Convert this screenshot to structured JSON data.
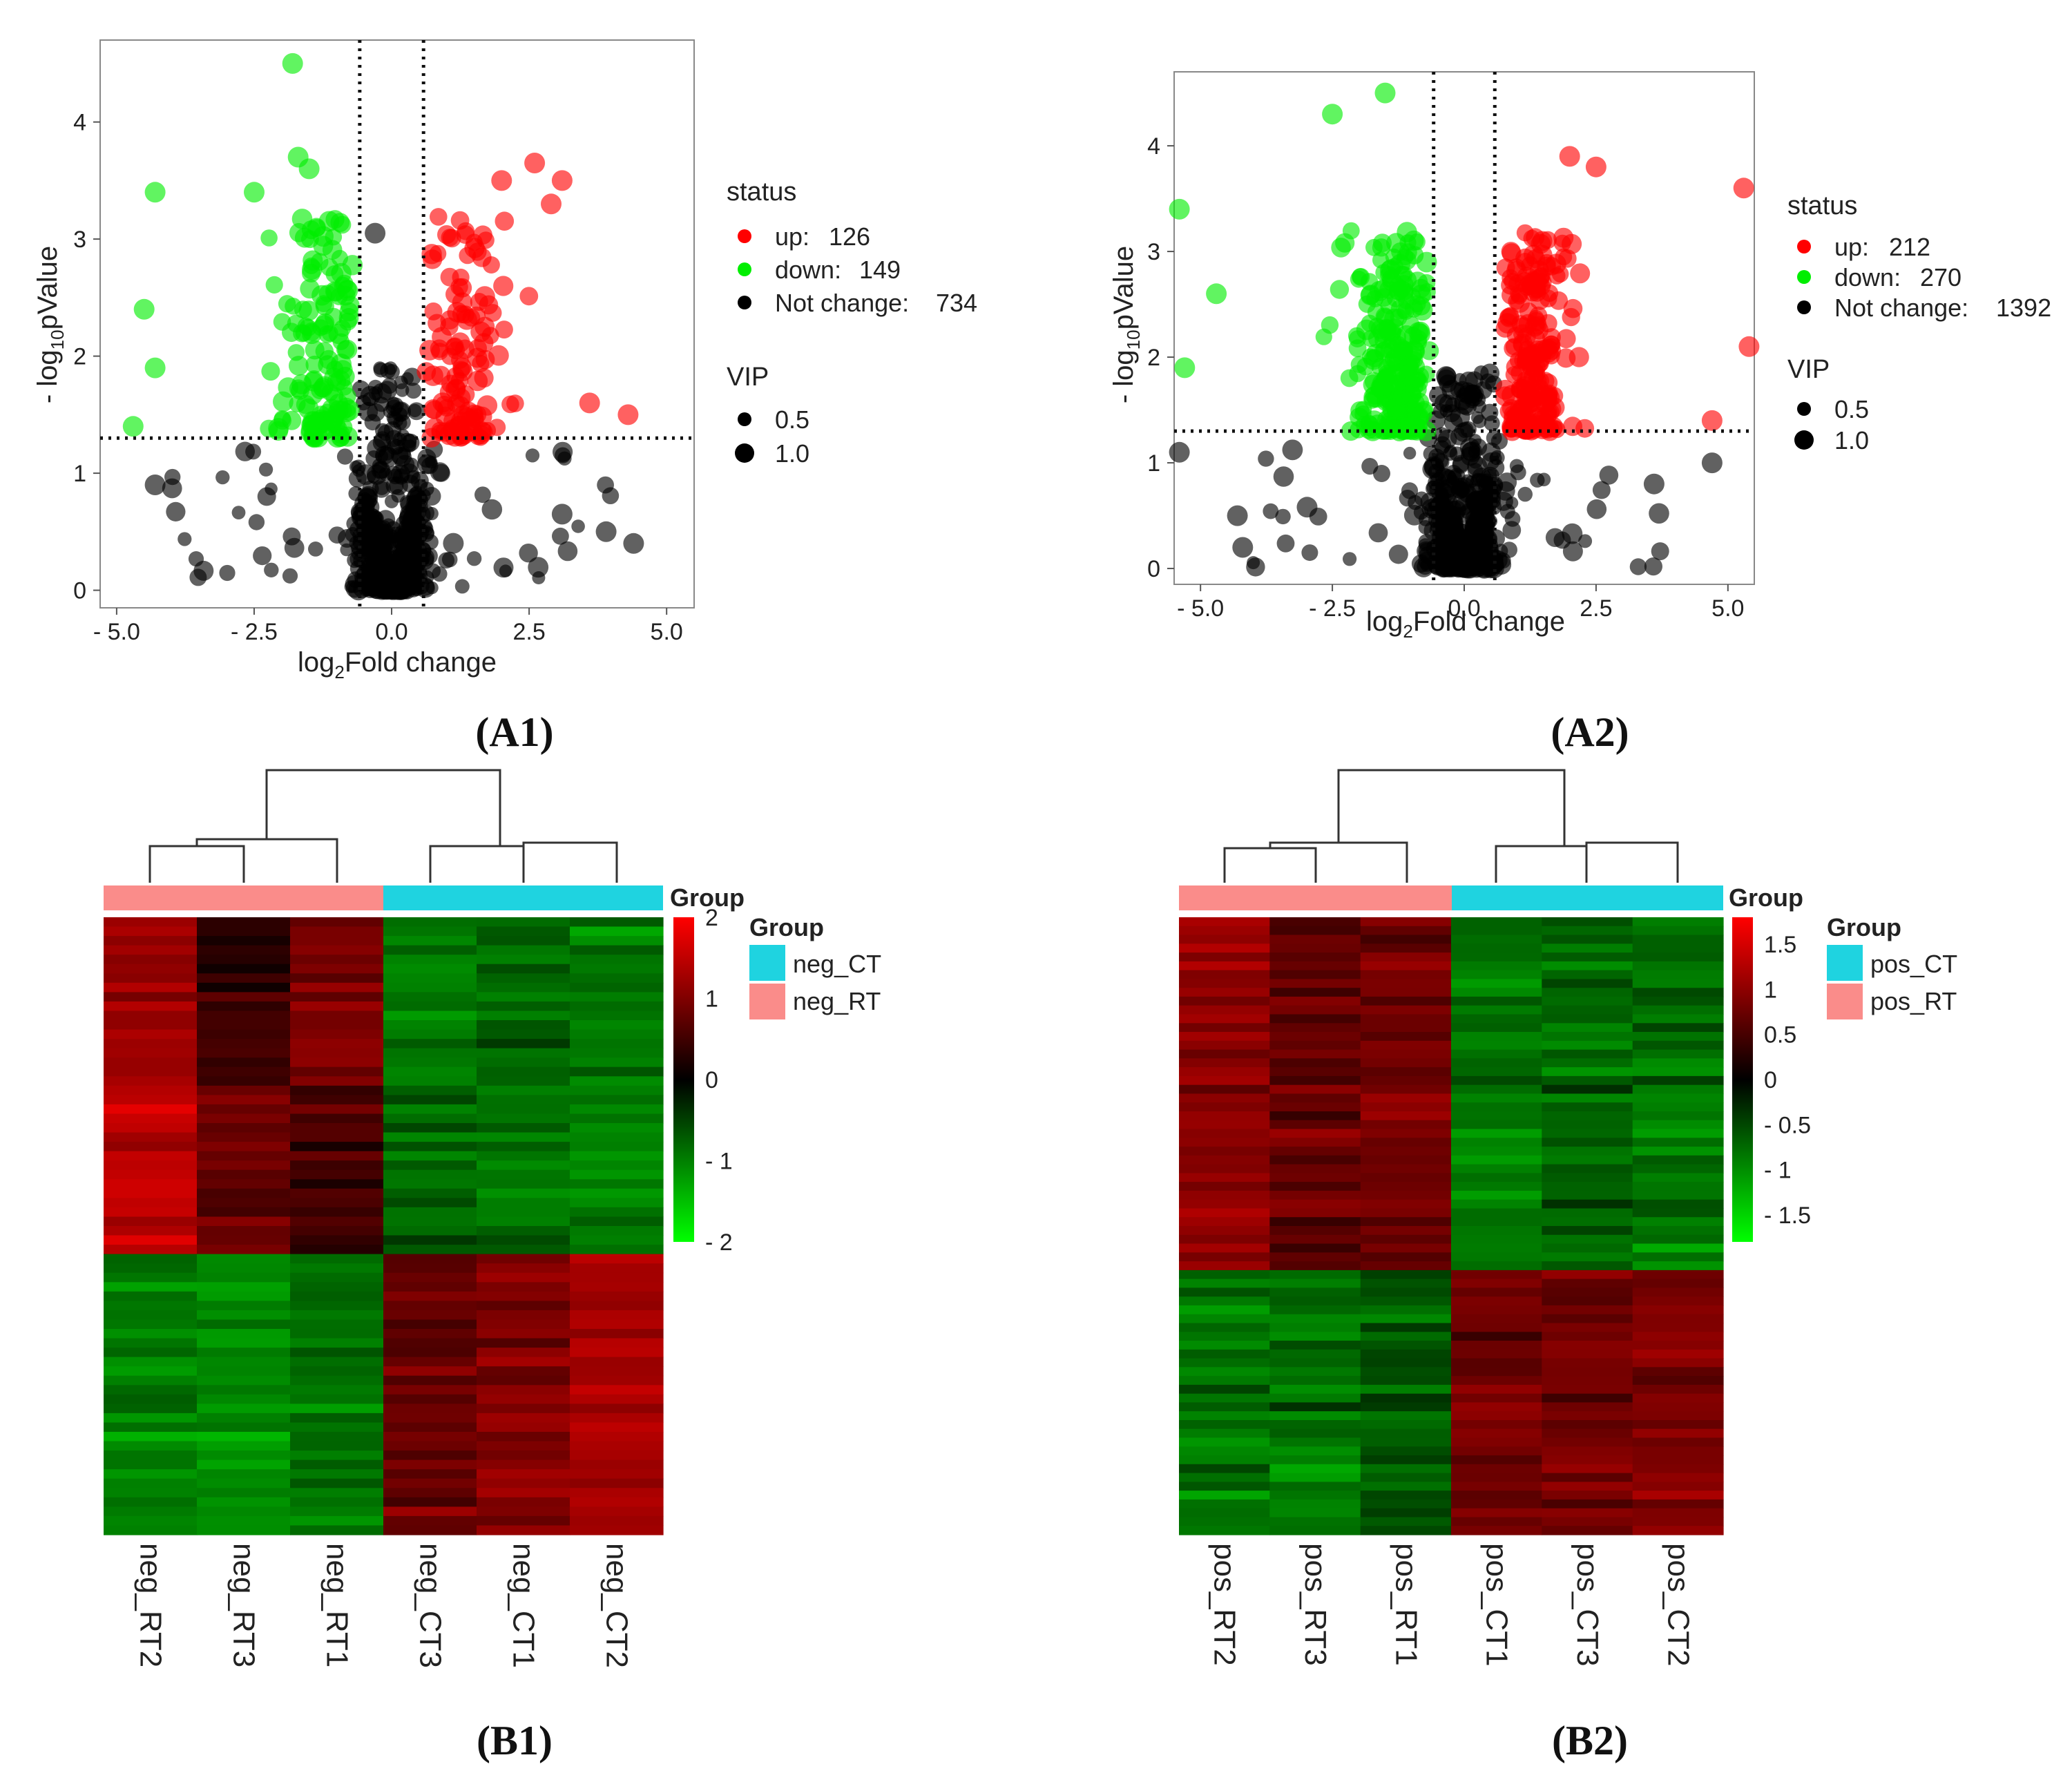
{
  "figure": {
    "panels": {
      "a1": "(A1)",
      "a2": "(A2)",
      "b1": "(B1)",
      "b2": "(B2)"
    }
  },
  "colors": {
    "up": "#ff0000",
    "down": "#00ee00",
    "not_change": "#000000",
    "ct": "#1fd3e0",
    "rt": "#fa8c8a",
    "heat_high": "#ff0000",
    "heat_mid": "#000000",
    "heat_low": "#00ff00"
  },
  "chart_data": [
    {
      "type": "scatter",
      "id": "A1",
      "xlabel": "log2Fold change",
      "ylabel": "- log10pValue",
      "xlim": [
        -5.3,
        5.5
      ],
      "ylim": [
        -0.15,
        4.7
      ],
      "xticks": [
        -5.0,
        -2.5,
        0.0,
        2.5,
        5.0
      ],
      "xtick_labels": [
        "- 5.0",
        "- 2.5",
        "0.0",
        "2.5",
        "5.0"
      ],
      "yticks": [
        0,
        1,
        2,
        3,
        4
      ],
      "ytick_labels": [
        "0",
        "1",
        "2",
        "3",
        "4"
      ],
      "thresholds": {
        "fold_change": [
          -0.58,
          0.58
        ],
        "p_value_line": 1.3
      },
      "legend": {
        "status_title": "status",
        "items": [
          {
            "key": "up",
            "label": "up:",
            "count": "126"
          },
          {
            "key": "down",
            "label": "down:",
            "count": "149"
          },
          {
            "key": "not_change",
            "label": "Not change:",
            "count": "734"
          }
        ],
        "vip_title": "VIP",
        "vip_sizes": [
          {
            "label": "0.5",
            "vip": 0.5
          },
          {
            "label": "1.0",
            "vip": 1.0
          }
        ]
      },
      "counts": {
        "up": 126,
        "down": 149,
        "not_change": 734
      },
      "highlight_points": [
        {
          "status": "down",
          "x": -1.8,
          "y": 4.5
        },
        {
          "status": "down",
          "x": -1.7,
          "y": 3.7
        },
        {
          "status": "down",
          "x": -1.5,
          "y": 3.6
        },
        {
          "status": "down",
          "x": -4.3,
          "y": 3.4
        },
        {
          "status": "down",
          "x": -2.5,
          "y": 3.4
        },
        {
          "status": "down",
          "x": -4.5,
          "y": 2.4
        },
        {
          "status": "down",
          "x": -4.3,
          "y": 1.9
        },
        {
          "status": "down",
          "x": -4.7,
          "y": 1.4
        },
        {
          "status": "up",
          "x": 2.6,
          "y": 3.65
        },
        {
          "status": "up",
          "x": 3.1,
          "y": 3.5
        },
        {
          "status": "up",
          "x": 2.0,
          "y": 3.5
        },
        {
          "status": "up",
          "x": 2.9,
          "y": 3.3
        },
        {
          "status": "up",
          "x": 4.3,
          "y": 1.5
        },
        {
          "status": "up",
          "x": 3.6,
          "y": 1.6
        },
        {
          "status": "not_change",
          "x": -0.3,
          "y": 3.05
        },
        {
          "status": "not_change",
          "x": -4.3,
          "y": 0.9
        },
        {
          "status": "not_change",
          "x": 4.4,
          "y": 0.4
        },
        {
          "status": "not_change",
          "x": 3.9,
          "y": 0.5
        },
        {
          "status": "not_change",
          "x": 3.1,
          "y": 0.65
        }
      ]
    },
    {
      "type": "scatter",
      "id": "A2",
      "xlabel": "log2Fold change",
      "ylabel": "- log10pValue",
      "xlim": [
        -5.5,
        5.5
      ],
      "ylim": [
        -0.15,
        4.7
      ],
      "xticks": [
        -5.0,
        -2.5,
        0.0,
        2.5,
        5.0
      ],
      "xtick_labels": [
        "- 5.0",
        "- 2.5",
        "0.0",
        "2.5",
        "5.0"
      ],
      "yticks": [
        0,
        1,
        2,
        3,
        4
      ],
      "ytick_labels": [
        "0",
        "1",
        "2",
        "3",
        "4"
      ],
      "thresholds": {
        "fold_change": [
          -0.58,
          0.58
        ],
        "p_value_line": 1.3
      },
      "legend": {
        "status_title": "status",
        "items": [
          {
            "key": "up",
            "label": "up:",
            "count": "212"
          },
          {
            "key": "down",
            "label": "down:",
            "count": "270"
          },
          {
            "key": "not_change",
            "label": "Not change:",
            "count": "1392"
          }
        ],
        "vip_title": "VIP",
        "vip_sizes": [
          {
            "label": "0.5",
            "vip": 0.5
          },
          {
            "label": "1.0",
            "vip": 1.0
          }
        ]
      },
      "counts": {
        "up": 212,
        "down": 270,
        "not_change": 1392
      },
      "highlight_points": [
        {
          "status": "down",
          "x": -1.5,
          "y": 4.5
        },
        {
          "status": "down",
          "x": -2.5,
          "y": 4.3
        },
        {
          "status": "down",
          "x": -5.4,
          "y": 3.4
        },
        {
          "status": "down",
          "x": -5.3,
          "y": 1.9
        },
        {
          "status": "down",
          "x": -4.7,
          "y": 2.6
        },
        {
          "status": "up",
          "x": 5.3,
          "y": 3.6
        },
        {
          "status": "up",
          "x": 5.4,
          "y": 2.1
        },
        {
          "status": "up",
          "x": 2.0,
          "y": 3.9
        },
        {
          "status": "up",
          "x": 2.5,
          "y": 3.8
        },
        {
          "status": "up",
          "x": 4.7,
          "y": 1.4
        },
        {
          "status": "not_change",
          "x": -5.4,
          "y": 1.1
        },
        {
          "status": "not_change",
          "x": -4.3,
          "y": 0.5
        },
        {
          "status": "not_change",
          "x": -4.2,
          "y": 0.2
        },
        {
          "status": "not_change",
          "x": 4.7,
          "y": 1.0
        },
        {
          "status": "not_change",
          "x": 3.6,
          "y": 0.8
        }
      ]
    },
    {
      "type": "heatmap",
      "id": "B1",
      "columns": [
        "neg_RT2",
        "neg_RT3",
        "neg_RT1",
        "neg_CT3",
        "neg_CT1",
        "neg_CT2"
      ],
      "column_groups": [
        "neg_RT",
        "neg_RT",
        "neg_RT",
        "neg_CT",
        "neg_CT",
        "neg_CT"
      ],
      "group_annotation_title": "Group",
      "group_legend": {
        "title": "Group",
        "items": [
          {
            "label": "neg_CT",
            "key": "ct"
          },
          {
            "label": "neg_RT",
            "key": "rt"
          }
        ]
      },
      "color_scale": {
        "min": -2,
        "max": 2,
        "ticks": [
          2,
          1,
          0,
          -1,
          -2
        ],
        "tick_labels": [
          "2",
          "1",
          "0",
          "- 1",
          "- 2"
        ]
      },
      "row_blocks": [
        {
          "rows": 18,
          "means": [
            1.2,
            0.4,
            1.0,
            -0.9,
            -0.8,
            -0.9
          ]
        },
        {
          "rows": 18,
          "means": [
            1.5,
            0.8,
            0.5,
            -0.8,
            -0.9,
            -1.0
          ]
        },
        {
          "rows": 30,
          "means": [
            -1.0,
            -1.1,
            -0.9,
            0.8,
            1.0,
            1.3
          ]
        }
      ]
    },
    {
      "type": "heatmap",
      "id": "B2",
      "columns": [
        "pos_RT2",
        "pos_RT3",
        "pos_RT1",
        "pos_CT1",
        "pos_CT3",
        "pos_CT2"
      ],
      "column_groups": [
        "pos_RT",
        "pos_RT",
        "pos_RT",
        "pos_CT",
        "pos_CT",
        "pos_CT"
      ],
      "group_annotation_title": "Group",
      "group_legend": {
        "title": "Group",
        "items": [
          {
            "label": "pos_CT",
            "key": "ct"
          },
          {
            "label": "pos_RT",
            "key": "rt"
          }
        ]
      },
      "color_scale": {
        "min": -1.8,
        "max": 1.8,
        "ticks": [
          1.5,
          1,
          0.5,
          0,
          -0.5,
          -1,
          -1.5
        ],
        "tick_labels": [
          "1.5",
          "1",
          "0.5",
          "0",
          "- 0.5",
          "- 1",
          "- 1.5"
        ]
      },
      "row_blocks": [
        {
          "rows": 40,
          "means": [
            1.0,
            0.7,
            0.8,
            -0.8,
            -0.7,
            -0.8
          ]
        },
        {
          "rows": 30,
          "means": [
            -0.8,
            -0.8,
            -0.6,
            0.8,
            0.8,
            0.9
          ]
        }
      ]
    }
  ]
}
